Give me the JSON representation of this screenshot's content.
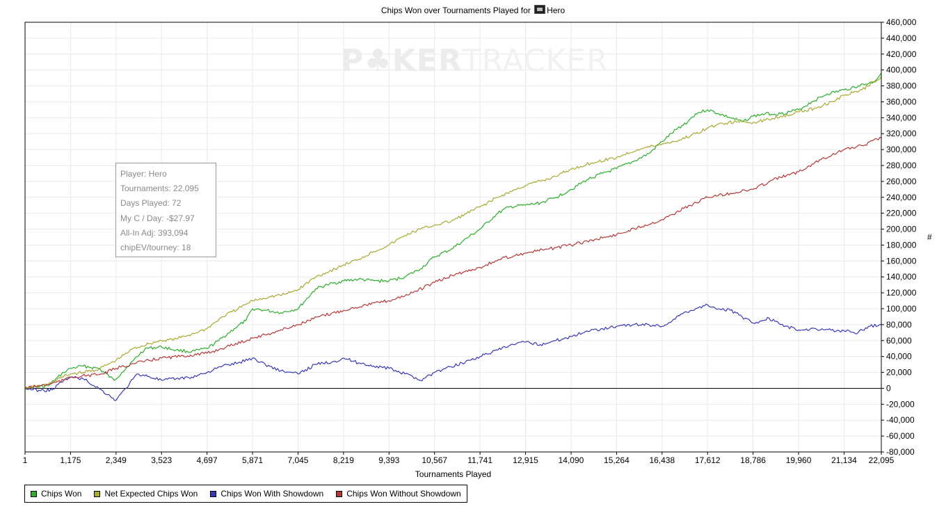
{
  "header": {
    "title_prefix": "Chips Won over Tournaments Played for",
    "player": "Hero"
  },
  "watermark": {
    "bold": "P♣KER",
    "thin": "TRACKER"
  },
  "stats": [
    "Player: Hero",
    "Tournaments: 22,095",
    "Days Played: 72",
    "My C / Day: -$27.97",
    "All-In Adj: 393,094",
    "chipEV/tourney: 18"
  ],
  "legend": [
    {
      "label": "Chips Won",
      "color": "#2bad2b"
    },
    {
      "label": "Net Expected Chips Won",
      "color": "#a9a930"
    },
    {
      "label": "Chips Won With Showdown",
      "color": "#3838b4"
    },
    {
      "label": "Chips Won Without Showdown",
      "color": "#b43838"
    }
  ],
  "chart_data": {
    "type": "line",
    "title": "Chips Won over Tournaments Played for Hero",
    "xlabel": "Tournaments Played",
    "ylabel": "#",
    "xlim": [
      1,
      22095
    ],
    "ylim": [
      -80000,
      460000
    ],
    "x_ticks": [
      "1",
      "1,175",
      "2,349",
      "3,523",
      "4,697",
      "5,871",
      "7,045",
      "8,219",
      "9,393",
      "10,567",
      "11,741",
      "12,915",
      "14,090",
      "15,264",
      "16,438",
      "17,612",
      "18,786",
      "19,960",
      "21,134",
      "22,095"
    ],
    "x_tick_values": [
      1,
      1175,
      2349,
      3523,
      4697,
      5871,
      7045,
      8219,
      9393,
      10567,
      11741,
      12915,
      14090,
      15264,
      16438,
      17612,
      18786,
      19960,
      21134,
      22095
    ],
    "y_ticks": [
      -80000,
      -60000,
      -40000,
      -20000,
      0,
      20000,
      40000,
      60000,
      80000,
      100000,
      120000,
      140000,
      160000,
      180000,
      200000,
      220000,
      240000,
      260000,
      280000,
      300000,
      320000,
      340000,
      360000,
      380000,
      400000,
      420000,
      440000,
      460000
    ],
    "grid": true,
    "zero_line": true,
    "legend_position": "bottom-left",
    "series": [
      {
        "name": "Chips Won",
        "color": "#2bad2b",
        "x": [
          1,
          600,
          1000,
          1175,
          1500,
          1900,
          2300,
          2500,
          2800,
          3100,
          3523,
          3900,
          4300,
          4697,
          5000,
          5400,
          5700,
          5871,
          6200,
          6600,
          7045,
          7500,
          7800,
          8219,
          8600,
          9000,
          9393,
          9800,
          10200,
          10567,
          11000,
          11300,
          11741,
          12200,
          12500,
          12915,
          13300,
          13700,
          14090,
          14500,
          14900,
          15264,
          15700,
          16100,
          16438,
          16800,
          17100,
          17300,
          17612,
          17900,
          18200,
          18500,
          18786,
          19100,
          19500,
          19960,
          20300,
          20700,
          21134,
          21500,
          21900,
          22095
        ],
        "y": [
          0,
          3000,
          20000,
          25000,
          28000,
          25000,
          10000,
          20000,
          35000,
          50000,
          52000,
          48000,
          46000,
          50000,
          60000,
          75000,
          85000,
          100000,
          98000,
          95000,
          100000,
          125000,
          130000,
          135000,
          137000,
          135000,
          135000,
          140000,
          150000,
          165000,
          175000,
          185000,
          200000,
          220000,
          228000,
          230000,
          233000,
          240000,
          250000,
          262000,
          270000,
          276000,
          285000,
          295000,
          310000,
          325000,
          335000,
          345000,
          350000,
          345000,
          340000,
          335000,
          342000,
          345000,
          345000,
          350000,
          360000,
          370000,
          375000,
          380000,
          385000,
          396000
        ]
      },
      {
        "name": "Net Expected Chips Won",
        "color": "#a9a930",
        "x": [
          1,
          600,
          1000,
          1175,
          1500,
          1900,
          2349,
          2800,
          3200,
          3523,
          3900,
          4300,
          4697,
          5100,
          5500,
          5871,
          6300,
          6700,
          7045,
          7500,
          8000,
          8219,
          8600,
          9000,
          9393,
          9800,
          10200,
          10567,
          11000,
          11741,
          12200,
          12915,
          13500,
          14090,
          14600,
          15264,
          15800,
          16438,
          16900,
          17300,
          17612,
          18000,
          18400,
          18786,
          19100,
          19500,
          19960,
          20400,
          20800,
          21134,
          21600,
          22095
        ],
        "y": [
          0,
          5000,
          15000,
          18000,
          20000,
          24000,
          35000,
          50000,
          56000,
          60000,
          62000,
          68000,
          75000,
          90000,
          100000,
          110000,
          115000,
          118000,
          124000,
          140000,
          150000,
          155000,
          162000,
          172000,
          180000,
          192000,
          200000,
          205000,
          210000,
          228000,
          240000,
          255000,
          263000,
          275000,
          283000,
          290000,
          300000,
          307000,
          312000,
          320000,
          327000,
          333000,
          335000,
          334000,
          337000,
          342000,
          347000,
          352000,
          360000,
          368000,
          375000,
          392000
        ]
      },
      {
        "name": "Chips Won With Showdown",
        "color": "#3838b4",
        "x": [
          1,
          400,
          700,
          1000,
          1175,
          1500,
          1900,
          2200,
          2349,
          2600,
          2900,
          3200,
          3523,
          3900,
          4300,
          4697,
          5100,
          5500,
          5871,
          6200,
          6600,
          7045,
          7500,
          8000,
          8219,
          8600,
          9000,
          9393,
          9800,
          10000,
          10200,
          10567,
          11000,
          11741,
          12200,
          12600,
          12915,
          13300,
          13700,
          14090,
          14500,
          14900,
          15264,
          15700,
          16100,
          16438,
          16700,
          17000,
          17300,
          17612,
          17900,
          18200,
          18500,
          18786,
          19000,
          19200,
          19500,
          19960,
          20400,
          20800,
          21134,
          21500,
          21800,
          22095
        ],
        "y": [
          0,
          -3000,
          -2000,
          10000,
          14000,
          12000,
          0,
          -10000,
          -15000,
          0,
          18000,
          15000,
          10000,
          12000,
          14000,
          20000,
          28000,
          32000,
          38000,
          30000,
          22000,
          18000,
          30000,
          34000,
          38000,
          32000,
          28000,
          25000,
          18000,
          15000,
          10000,
          20000,
          27000,
          40000,
          48000,
          55000,
          58000,
          55000,
          60000,
          65000,
          72000,
          75000,
          78000,
          80000,
          80000,
          78000,
          85000,
          95000,
          100000,
          105000,
          100000,
          98000,
          90000,
          82000,
          85000,
          88000,
          80000,
          73000,
          75000,
          73000,
          72000,
          70000,
          78000,
          80000
        ]
      },
      {
        "name": "Chips Won Without Showdown",
        "color": "#b43838",
        "x": [
          1,
          600,
          1000,
          1175,
          1600,
          2000,
          2349,
          2800,
          3200,
          3523,
          4000,
          4697,
          5200,
          5871,
          6400,
          7045,
          7600,
          8219,
          8800,
          9393,
          10000,
          10567,
          11100,
          11741,
          12300,
          12915,
          13500,
          14090,
          14700,
          15264,
          15800,
          16438,
          17000,
          17612,
          18200,
          18786,
          19300,
          19960,
          20500,
          21134,
          21600,
          22095
        ],
        "y": [
          0,
          5000,
          10000,
          14000,
          16000,
          18000,
          25000,
          31000,
          35000,
          38000,
          40000,
          44000,
          52000,
          63000,
          70000,
          80000,
          90000,
          98000,
          105000,
          110000,
          120000,
          133000,
          143000,
          152000,
          163000,
          170000,
          175000,
          180000,
          187000,
          193000,
          202000,
          212000,
          226000,
          240000,
          245000,
          250000,
          262000,
          272000,
          287000,
          300000,
          305000,
          315000
        ]
      }
    ]
  }
}
